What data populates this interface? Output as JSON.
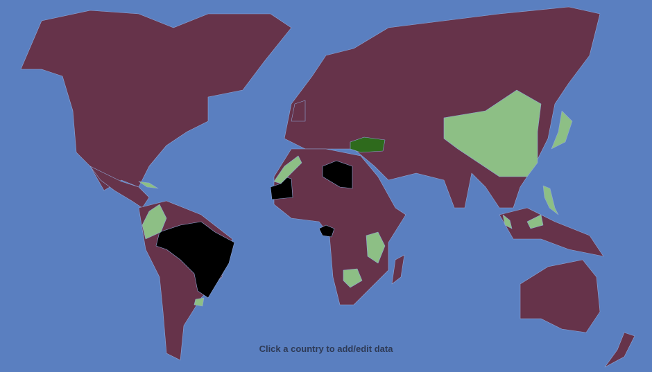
{
  "hint": "Click a country to add/edit data",
  "colors": {
    "ocean": "#5a7fc0",
    "default_land": "#66334a",
    "light_green": "#8dbf85",
    "dark_green": "#2e6a1c",
    "black": "#000000"
  },
  "highlighted_countries": {
    "black": [
      "Brazil",
      "Libya",
      "Mauritania",
      "Gabon"
    ],
    "light_green": [
      "China",
      "Colombia",
      "Morocco",
      "Cuba",
      "Tanzania",
      "Botswana",
      "Uruguay",
      "Malaysia",
      "Philippines",
      "Japan"
    ],
    "dark_green": [
      "Turkey"
    ]
  }
}
